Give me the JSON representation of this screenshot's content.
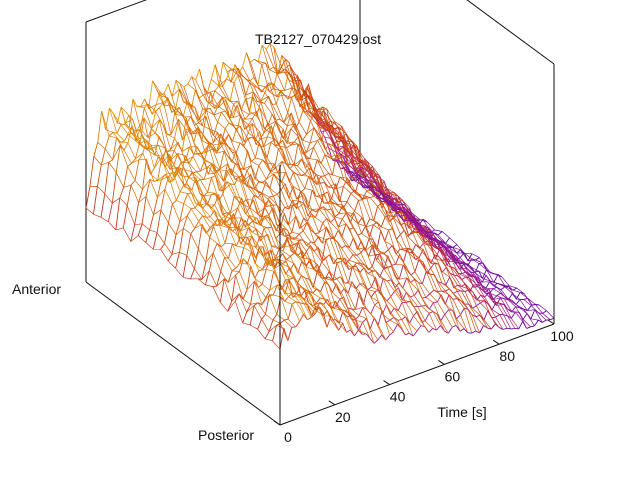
{
  "chart_data": {
    "type": "surface",
    "title": "TB2127_070429.ost",
    "xlabel": "Time [s]",
    "y_labels": {
      "low": "Posterior",
      "high": "Anterior"
    },
    "xlim": [
      0,
      100
    ],
    "x_ticks": [
      0,
      20,
      40,
      60,
      80,
      100
    ],
    "grid": false,
    "colormap": [
      "#4b0096",
      "#a0189b",
      "#c83a1a",
      "#d86e0c",
      "#f0b400"
    ],
    "ridge_profile": {
      "x": [
        0,
        5,
        10,
        15,
        20,
        25,
        30,
        35,
        40,
        45,
        50,
        55,
        60,
        65,
        70,
        75,
        80,
        85,
        90,
        95,
        100
      ],
      "anterior_height": [
        0.45,
        0.9,
        0.95,
        0.88,
        0.92,
        0.97,
        0.93,
        0.9,
        0.94,
        0.92,
        0.95,
        0.9,
        0.93,
        0.97,
        0.88,
        0.78,
        0.6,
        0.42,
        0.2,
        0.08,
        0.05
      ],
      "posterior_height": [
        0.5,
        0.55,
        0.6,
        0.55,
        0.45,
        0.4,
        0.35,
        0.3,
        0.32,
        0.28,
        0.25,
        0.22,
        0.2,
        0.18,
        0.15,
        0.12,
        0.1,
        0.08,
        0.06,
        0.05,
        0.04
      ]
    }
  }
}
